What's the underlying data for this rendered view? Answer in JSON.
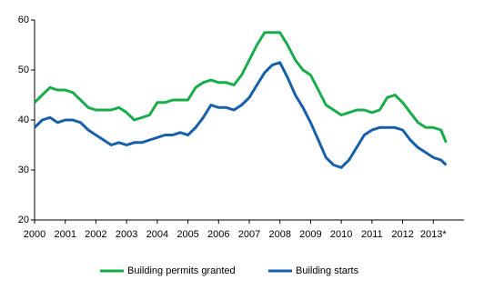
{
  "chart_data": {
    "type": "line",
    "x": [
      2000,
      2000.25,
      2000.5,
      2000.75,
      2001,
      2001.25,
      2001.5,
      2001.75,
      2002,
      2002.25,
      2002.5,
      2002.75,
      2003,
      2003.25,
      2003.5,
      2003.75,
      2004,
      2004.25,
      2004.5,
      2004.75,
      2005,
      2005.25,
      2005.5,
      2005.75,
      2006,
      2006.25,
      2006.5,
      2006.75,
      2007,
      2007.25,
      2007.5,
      2007.75,
      2008,
      2008.25,
      2008.5,
      2008.75,
      2009,
      2009.25,
      2009.5,
      2009.75,
      2010,
      2010.25,
      2010.5,
      2010.75,
      2011,
      2011.25,
      2011.5,
      2011.75,
      2012,
      2012.25,
      2012.5,
      2012.75,
      2013,
      2013.25,
      2013.42
    ],
    "series": [
      {
        "name": "Building permits granted",
        "color": "#1aab4b",
        "values": [
          43.5,
          45,
          46.5,
          46,
          46,
          45.5,
          44,
          42.5,
          42,
          42,
          42,
          42.5,
          41.5,
          40,
          40.5,
          41,
          43.5,
          43.5,
          44,
          44,
          44,
          46.5,
          47.5,
          48,
          47.5,
          47.5,
          47,
          49,
          52,
          55,
          57.5,
          57.5,
          57.5,
          55,
          52,
          50,
          49,
          46,
          43,
          42,
          41,
          41.5,
          42,
          42,
          41.5,
          42,
          44.5,
          45,
          43.5,
          41.5,
          39.5,
          38.5,
          38.5,
          38,
          35.5
        ]
      },
      {
        "name": "Building starts",
        "color": "#175fa6",
        "values": [
          38.5,
          40,
          40.5,
          39.5,
          40,
          40,
          39.5,
          38,
          37,
          36,
          35,
          35.5,
          35,
          35.5,
          35.5,
          36,
          36.5,
          37,
          37,
          37.5,
          37,
          38.5,
          40.5,
          43,
          42.5,
          42.5,
          42,
          43,
          44.5,
          47,
          49.5,
          51,
          51.5,
          48.5,
          45,
          42.5,
          39.5,
          36,
          32.5,
          31,
          30.5,
          32,
          34.5,
          37,
          38,
          38.5,
          38.5,
          38.5,
          38,
          36,
          34.5,
          33.5,
          32.5,
          32,
          31
        ]
      }
    ],
    "xlim": [
      2000,
      2014
    ],
    "xticks": [
      2000,
      2001,
      2002,
      2003,
      2004,
      2005,
      2006,
      2007,
      2008,
      2009,
      2010,
      2011,
      2012,
      {
        "value": 2013,
        "label": "2013*"
      }
    ],
    "ylim": [
      20,
      60
    ],
    "yticks": [
      20,
      30,
      40,
      50,
      60
    ],
    "grid": false
  }
}
